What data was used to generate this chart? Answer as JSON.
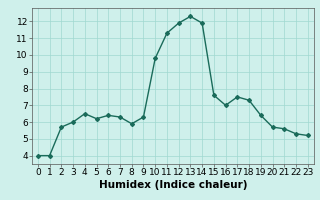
{
  "x": [
    0,
    1,
    2,
    3,
    4,
    5,
    6,
    7,
    8,
    9,
    10,
    11,
    12,
    13,
    14,
    15,
    16,
    17,
    18,
    19,
    20,
    21,
    22,
    23
  ],
  "y": [
    4.0,
    4.0,
    5.7,
    6.0,
    6.5,
    6.2,
    6.4,
    6.3,
    5.9,
    6.3,
    9.8,
    11.3,
    11.9,
    12.3,
    11.9,
    7.6,
    7.0,
    7.5,
    7.3,
    6.4,
    5.7,
    5.6,
    5.3,
    5.2
  ],
  "line_color": "#1a6b5a",
  "marker": "D",
  "marker_size": 2,
  "bg_color": "#cff0eb",
  "grid_color": "#a0d8d0",
  "xlabel": "Humidex (Indice chaleur)",
  "xlabel_fontsize": 7.5,
  "ylim": [
    3.5,
    12.8
  ],
  "xlim": [
    -0.5,
    23.5
  ],
  "yticks": [
    4,
    5,
    6,
    7,
    8,
    9,
    10,
    11,
    12
  ],
  "xticks": [
    0,
    1,
    2,
    3,
    4,
    5,
    6,
    7,
    8,
    9,
    10,
    11,
    12,
    13,
    14,
    15,
    16,
    17,
    18,
    19,
    20,
    21,
    22,
    23
  ],
  "tick_fontsize": 6.5,
  "linewidth": 1.0
}
